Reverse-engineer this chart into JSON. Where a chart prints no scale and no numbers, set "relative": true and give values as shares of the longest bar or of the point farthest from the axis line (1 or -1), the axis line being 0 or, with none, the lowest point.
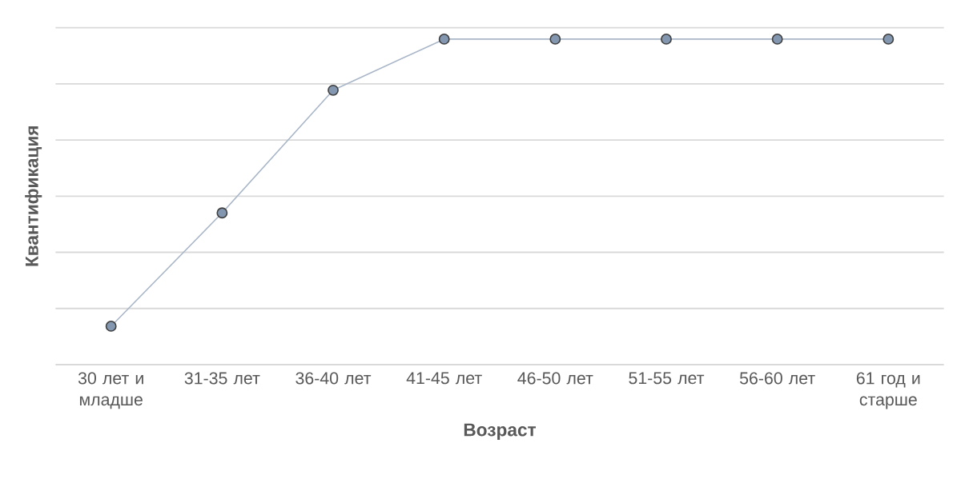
{
  "chart_data": {
    "type": "line",
    "relative": true,
    "xlabel": "Возраст",
    "ylabel": "Квантификация",
    "categories": [
      "30 лет и младше",
      "31-35 лет",
      "36-40 лет",
      "41-45 лет",
      "46-50 лет",
      "51-55 лет",
      "56-60 лет",
      "61 год и старше"
    ],
    "series": [
      {
        "color": "#8497b0",
        "values": [
          0.118,
          0.466,
          0.843,
          1,
          1,
          1,
          1,
          1
        ]
      }
    ],
    "marker": "circle",
    "grid": "y"
  }
}
